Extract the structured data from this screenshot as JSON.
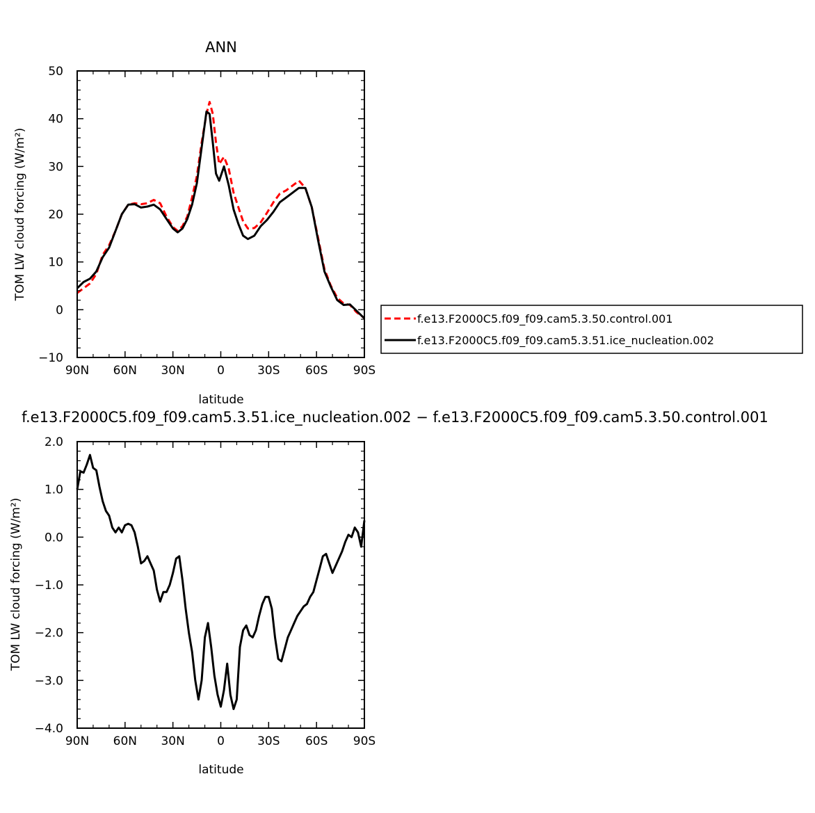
{
  "chart_data": [
    {
      "type": "line",
      "title": "ANN",
      "xlabel": "latitude",
      "ylabel": "TOM LW cloud forcing (W/m²)",
      "xlim": [
        90,
        -90
      ],
      "ylim": [
        -10,
        50
      ],
      "xticks": [
        90,
        60,
        30,
        0,
        -30,
        -60,
        -90
      ],
      "xtick_labels": [
        "90N",
        "60N",
        "30N",
        "0",
        "30S",
        "60S",
        "90S"
      ],
      "yticks": [
        -10,
        0,
        10,
        20,
        30,
        40,
        50
      ],
      "ytick_labels": [
        "−10",
        "0",
        "10",
        "20",
        "30",
        "40",
        "50"
      ],
      "grid": false,
      "legend_position": "right",
      "colors": {
        "control": "#ff0000",
        "ice": "#000000"
      },
      "series": [
        {
          "name": "f.e13.F2000C5.f09_f09.cam5.3.50.control.001",
          "style": "dashed",
          "color": "#ff0000",
          "x": [
            90,
            86,
            82,
            78,
            74,
            70,
            66,
            62,
            58,
            54,
            50,
            46,
            42,
            38,
            34,
            30,
            27,
            24,
            21,
            18,
            15,
            12,
            9,
            7,
            5,
            3,
            1,
            -2,
            -5,
            -8,
            -11,
            -14,
            -17,
            -21,
            -25,
            -29,
            -33,
            -37,
            -41,
            -45,
            -49,
            -53,
            -57,
            -61,
            -65,
            -69,
            -73,
            -77,
            -81,
            -85,
            -89,
            -90
          ],
          "y": [
            3.5,
            4.5,
            5.5,
            7.5,
            11.5,
            13.5,
            16.5,
            20,
            22,
            22.3,
            22.1,
            22.3,
            23,
            22.3,
            19.5,
            17.3,
            16.5,
            17.5,
            19.5,
            23.5,
            28,
            35,
            41,
            43.5,
            41,
            35,
            30.5,
            32,
            29.5,
            24.5,
            21.5,
            18.5,
            17,
            17.1,
            18.3,
            20.3,
            22.5,
            24.3,
            25,
            26,
            27,
            25.5,
            21.5,
            15,
            8.5,
            5,
            2.5,
            1.3,
            1,
            -0.5,
            -1.5,
            -1.8
          ]
        },
        {
          "name": "f.e13.F2000C5.f09_f09.cam5.3.51.ice_nucleation.002",
          "style": "solid",
          "color": "#000000",
          "x": [
            90,
            86,
            82,
            78,
            74,
            70,
            66,
            62,
            58,
            54,
            50,
            46,
            42,
            38,
            34,
            30,
            27,
            24,
            21,
            18,
            15,
            12,
            9,
            7,
            5,
            3,
            1,
            -2,
            -5,
            -8,
            -11,
            -14,
            -17,
            -21,
            -25,
            -29,
            -33,
            -37,
            -41,
            -45,
            -49,
            -53,
            -57,
            -61,
            -65,
            -69,
            -73,
            -77,
            -81,
            -85,
            -89,
            -90
          ],
          "y": [
            4.5,
            5.8,
            6.5,
            8,
            11,
            13,
            16.5,
            20,
            22,
            22.1,
            21.4,
            21.6,
            22,
            21,
            19,
            17,
            16.2,
            17,
            19,
            22,
            26.5,
            34,
            41.5,
            41,
            35,
            28.5,
            27,
            30,
            26,
            21,
            18,
            15.5,
            14.8,
            15.5,
            17.5,
            18.8,
            20.5,
            22.5,
            23.5,
            24.5,
            25.5,
            25.5,
            21.5,
            14.5,
            8,
            4.8,
            2,
            1,
            1.1,
            -0.2,
            -1.5,
            -1.8
          ]
        }
      ]
    },
    {
      "type": "line",
      "title": "f.e13.F2000C5.f09_f09.cam5.3.51.ice_nucleation.002 − f.e13.F2000C5.f09_f09.cam5.3.50.control.001",
      "xlabel": "latitude",
      "ylabel": "TOM LW cloud forcing (W/m²)",
      "xlim": [
        90,
        -90
      ],
      "ylim": [
        -4,
        2
      ],
      "xticks": [
        90,
        60,
        30,
        0,
        -30,
        -60,
        -90
      ],
      "xtick_labels": [
        "90N",
        "60N",
        "30N",
        "0",
        "30S",
        "60S",
        "90S"
      ],
      "yticks": [
        -4,
        -3,
        -2,
        -1,
        0,
        1,
        2
      ],
      "ytick_labels": [
        "−4.0",
        "−3.0",
        "−2.0",
        "−1.0",
        "0.0",
        "1.0",
        "2.0"
      ],
      "grid": false,
      "series": [
        {
          "style": "solid",
          "color": "#000000",
          "x": [
            90,
            88,
            86,
            84,
            82,
            80,
            78,
            76,
            74,
            72,
            70,
            68,
            66,
            64,
            62,
            60,
            58,
            56,
            54,
            52,
            50,
            48,
            46,
            44,
            42,
            40,
            38,
            36,
            34,
            32,
            30,
            28,
            26,
            24,
            22,
            20,
            18,
            16,
            14,
            12,
            10,
            8,
            6,
            4,
            2,
            0,
            -2,
            -4,
            -6,
            -8,
            -10,
            -12,
            -14,
            -16,
            -18,
            -20,
            -22,
            -24,
            -26,
            -28,
            -30,
            -32,
            -34,
            -36,
            -38,
            -40,
            -42,
            -44,
            -46,
            -48,
            -50,
            -52,
            -54,
            -56,
            -58,
            -60,
            -62,
            -64,
            -66,
            -68,
            -70,
            -72,
            -74,
            -76,
            -78,
            -80,
            -82,
            -84,
            -86,
            -88,
            -90
          ],
          "y": [
            1.0,
            1.38,
            1.35,
            1.52,
            1.72,
            1.45,
            1.4,
            1.05,
            0.75,
            0.55,
            0.45,
            0.2,
            0.1,
            0.2,
            0.1,
            0.25,
            0.28,
            0.25,
            0.1,
            -0.2,
            -0.55,
            -0.5,
            -0.4,
            -0.55,
            -0.7,
            -1.1,
            -1.35,
            -1.15,
            -1.15,
            -1.0,
            -0.75,
            -0.45,
            -0.4,
            -0.9,
            -1.5,
            -2.0,
            -2.4,
            -3.0,
            -3.4,
            -3.0,
            -2.1,
            -1.8,
            -2.3,
            -2.9,
            -3.3,
            -3.55,
            -3.2,
            -2.65,
            -3.3,
            -3.6,
            -3.4,
            -2.3,
            -1.95,
            -1.85,
            -2.05,
            -2.1,
            -1.95,
            -1.65,
            -1.4,
            -1.25,
            -1.25,
            -1.5,
            -2.1,
            -2.55,
            -2.6,
            -2.35,
            -2.1,
            -1.95,
            -1.8,
            -1.65,
            -1.55,
            -1.45,
            -1.4,
            -1.25,
            -1.15,
            -0.9,
            -0.65,
            -0.4,
            -0.35,
            -0.55,
            -0.75,
            -0.6,
            -0.45,
            -0.3,
            -0.1,
            0.05,
            0.0,
            0.2,
            0.1,
            -0.2,
            0.35
          ]
        }
      ]
    }
  ]
}
